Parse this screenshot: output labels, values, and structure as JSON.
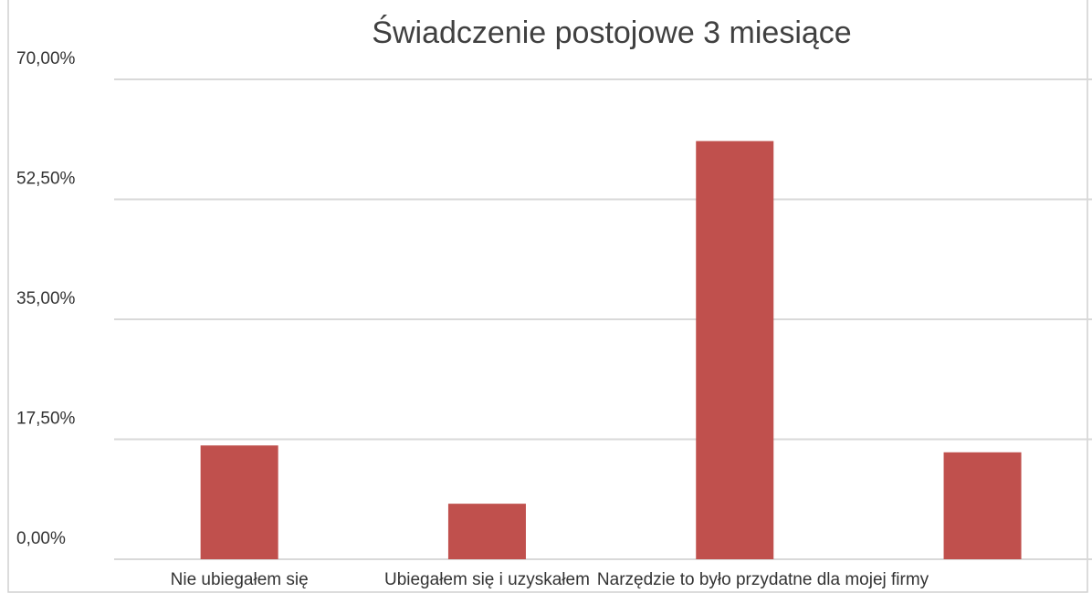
{
  "chart_data": {
    "type": "bar",
    "title": "Świadczenie postojowe 3 miesiące",
    "categories": [
      "Nie ubiegałem się",
      "Ubiegałem się i uzyskałem",
      "Narzędzie to było przydatne dla mojej firmy",
      null
    ],
    "values": [
      16.6,
      8.1,
      61.0,
      15.6
    ],
    "color": "#c0504d",
    "ylim": [
      0,
      70
    ],
    "yticks": [
      {
        "value": 0,
        "label": "0,00%"
      },
      {
        "value": 17.5,
        "label": "17,50%"
      },
      {
        "value": 35,
        "label": "35,00%"
      },
      {
        "value": 52.5,
        "label": "52,50%"
      },
      {
        "value": 70,
        "label": "70,00%"
      }
    ],
    "grid": true
  }
}
